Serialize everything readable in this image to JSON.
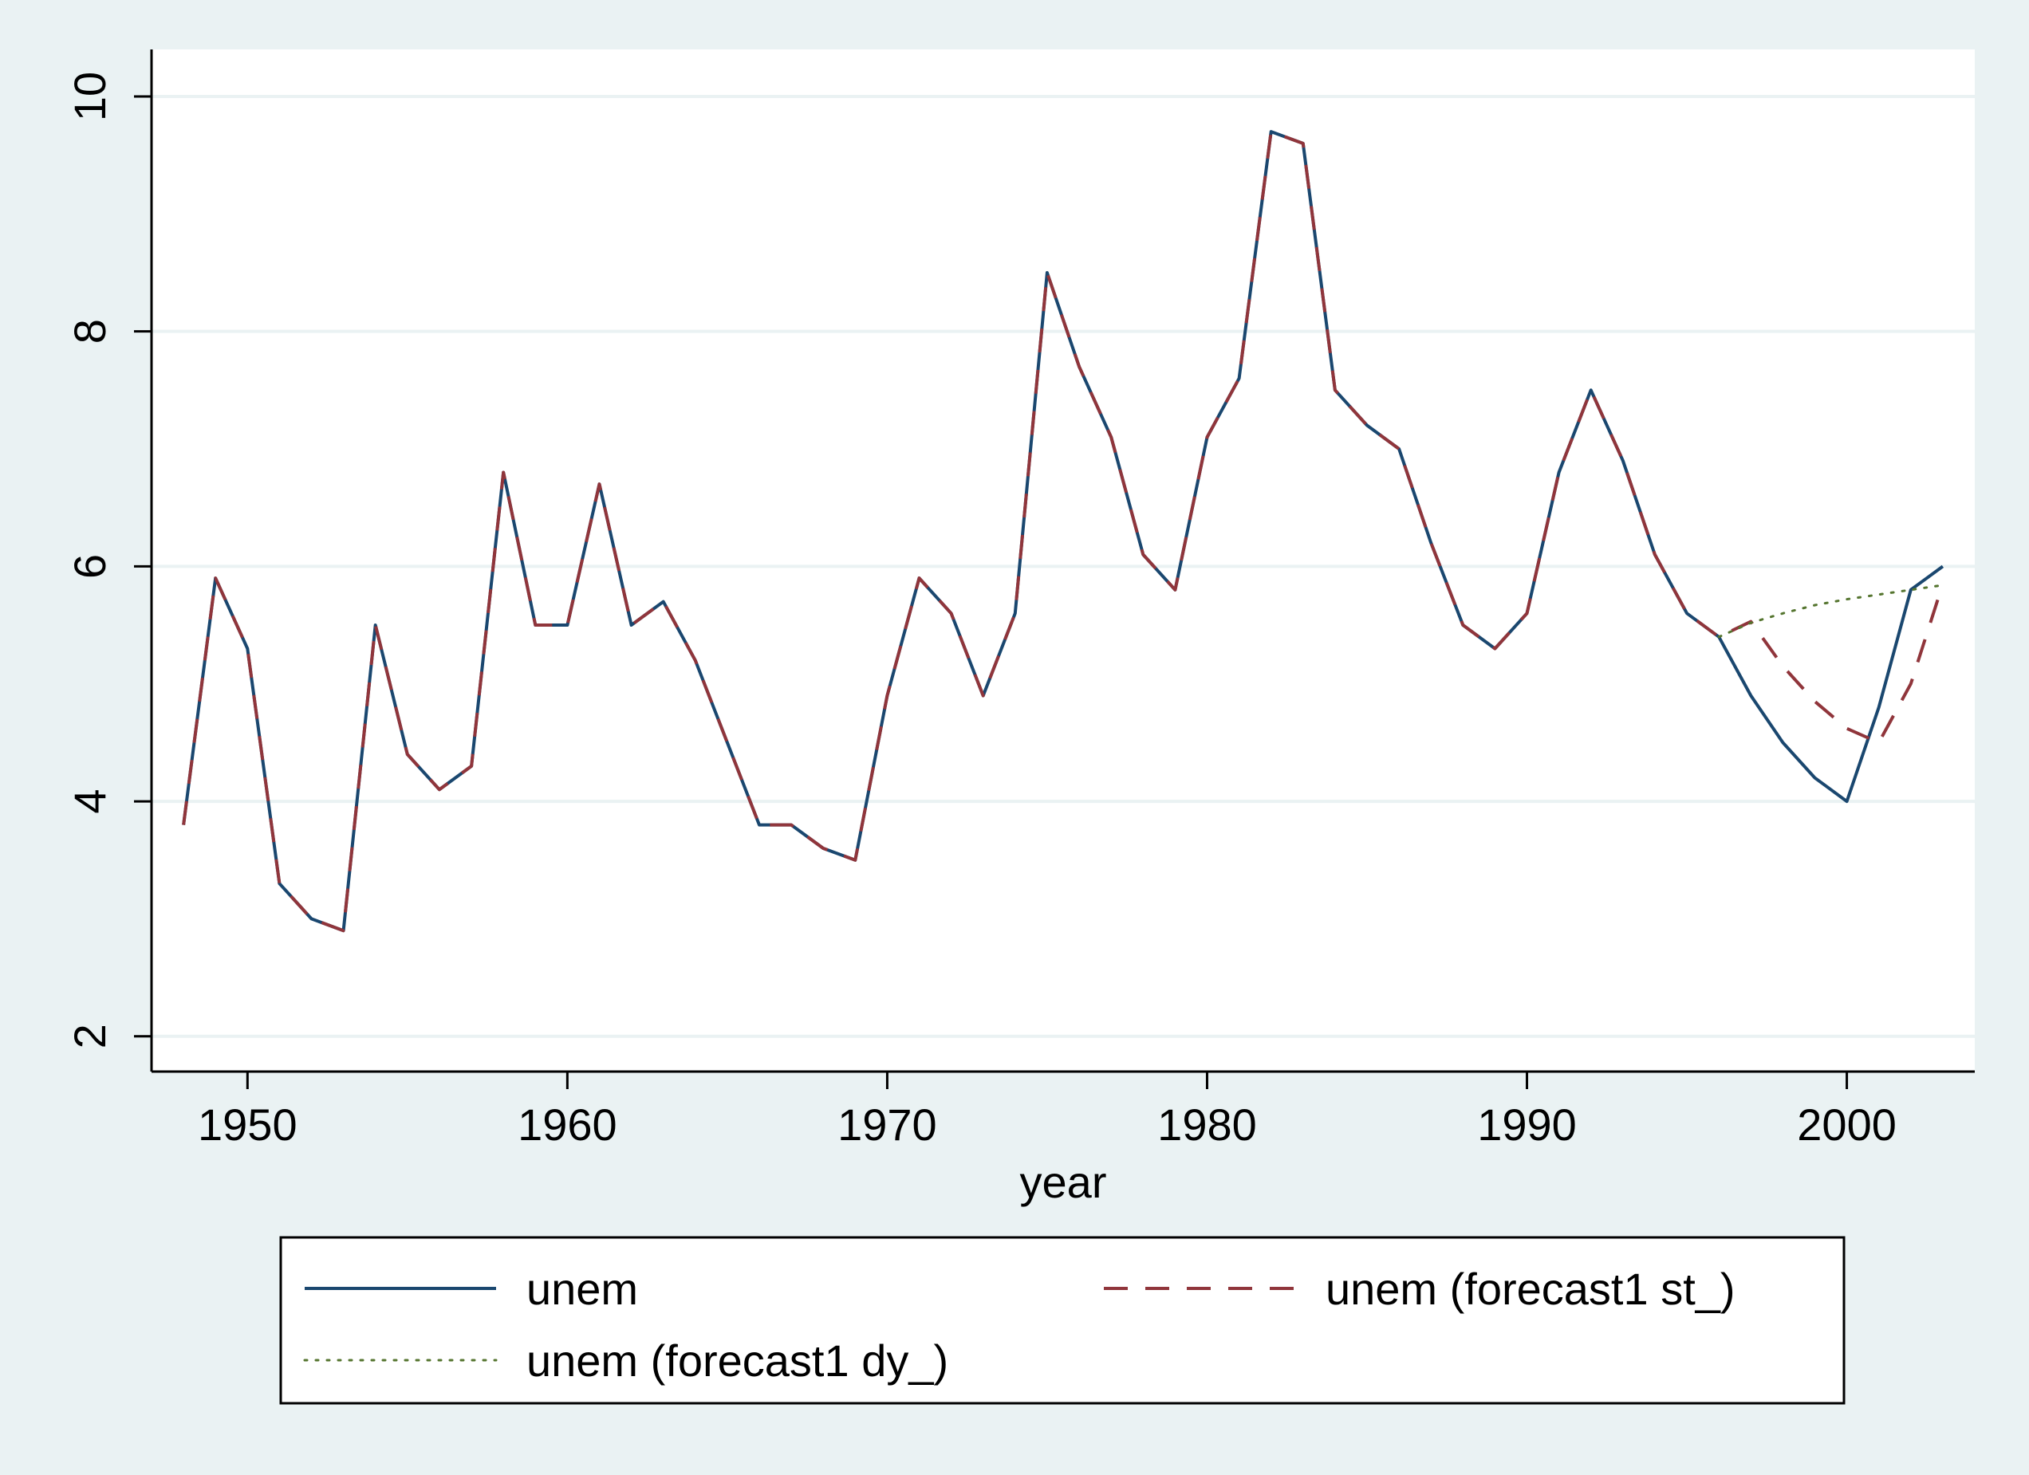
{
  "chart_data": {
    "type": "line",
    "title": "",
    "xlabel": "year",
    "ylabel": "",
    "xlim": [
      1947,
      2004
    ],
    "ylim": [
      1.7,
      10.4
    ],
    "xticks": [
      1950,
      1960,
      1970,
      1980,
      1990,
      2000
    ],
    "yticks": [
      2,
      4,
      6,
      8,
      10
    ],
    "grid": "horizontal",
    "legend_position": "bottom",
    "series": [
      {
        "name": "unem",
        "color": "#1a476f",
        "style": "solid",
        "x": [
          1948,
          1949,
          1950,
          1951,
          1952,
          1953,
          1954,
          1955,
          1956,
          1957,
          1958,
          1959,
          1960,
          1961,
          1962,
          1963,
          1964,
          1965,
          1966,
          1967,
          1968,
          1969,
          1970,
          1971,
          1972,
          1973,
          1974,
          1975,
          1976,
          1977,
          1978,
          1979,
          1980,
          1981,
          1982,
          1983,
          1984,
          1985,
          1986,
          1987,
          1988,
          1989,
          1990,
          1991,
          1992,
          1993,
          1994,
          1995,
          1996,
          1997,
          1998,
          1999,
          2000,
          2001,
          2002,
          2003
        ],
        "values": [
          3.8,
          5.9,
          5.3,
          3.3,
          3.0,
          2.9,
          5.5,
          4.4,
          4.1,
          4.3,
          6.8,
          5.5,
          5.5,
          6.7,
          5.5,
          5.7,
          5.2,
          4.5,
          3.8,
          3.8,
          3.6,
          3.5,
          4.9,
          5.9,
          5.6,
          4.9,
          5.6,
          8.5,
          7.7,
          7.1,
          6.1,
          5.8,
          7.1,
          7.6,
          9.7,
          9.6,
          7.5,
          7.2,
          7.0,
          6.2,
          5.5,
          5.3,
          5.6,
          6.8,
          7.5,
          6.9,
          6.1,
          5.6,
          5.4,
          4.9,
          4.5,
          4.2,
          4.0,
          4.8,
          5.8,
          6.0
        ]
      },
      {
        "name": "unem (forecast1 st_)",
        "color": "#90353b",
        "style": "dashed",
        "x": [
          1948,
          1949,
          1950,
          1951,
          1952,
          1953,
          1954,
          1955,
          1956,
          1957,
          1958,
          1959,
          1960,
          1961,
          1962,
          1963,
          1964,
          1965,
          1966,
          1967,
          1968,
          1969,
          1970,
          1971,
          1972,
          1973,
          1974,
          1975,
          1976,
          1977,
          1978,
          1979,
          1980,
          1981,
          1982,
          1983,
          1984,
          1985,
          1986,
          1987,
          1988,
          1989,
          1990,
          1991,
          1992,
          1993,
          1994,
          1995,
          1996,
          1997,
          1998,
          1999,
          2000,
          2001,
          2002,
          2003
        ],
        "values": [
          3.8,
          5.9,
          5.3,
          3.3,
          3.0,
          2.9,
          5.5,
          4.4,
          4.1,
          4.3,
          6.8,
          5.5,
          5.5,
          6.7,
          5.5,
          5.7,
          5.2,
          4.5,
          3.8,
          3.8,
          3.6,
          3.5,
          4.9,
          5.9,
          5.6,
          4.9,
          5.6,
          8.5,
          7.7,
          7.1,
          6.1,
          5.8,
          7.1,
          7.6,
          9.7,
          9.6,
          7.5,
          7.2,
          7.0,
          6.2,
          5.5,
          5.3,
          5.6,
          6.8,
          7.5,
          6.9,
          6.1,
          5.6,
          5.4,
          5.53,
          5.15,
          4.85,
          4.62,
          4.5,
          5.0,
          5.85
        ]
      },
      {
        "name": "unem (forecast1 dy_)",
        "color": "#55752f",
        "style": "dotted",
        "x": [
          1996,
          1997,
          1998,
          1999,
          2000,
          2001,
          2002,
          2003
        ],
        "values": [
          5.4,
          5.52,
          5.6,
          5.67,
          5.72,
          5.76,
          5.8,
          5.84
        ]
      }
    ]
  }
}
